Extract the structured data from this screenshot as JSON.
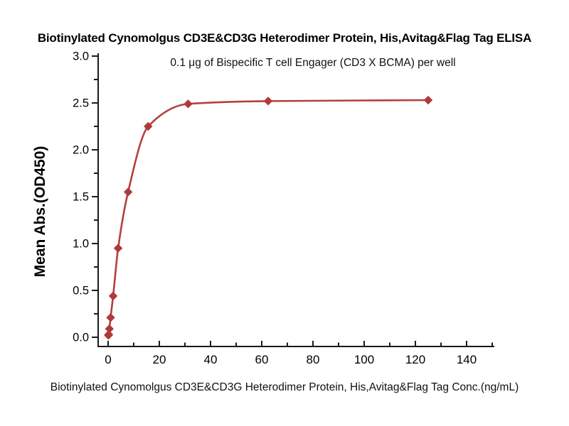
{
  "chart_data": {
    "type": "scatter",
    "title": "Biotinylated Cynomolgus CD3E&CD3G Heterodimer Protein, His,Avitag&Flag Tag ELISA",
    "subtitle": "0.1 μg of Bispecific T cell Engager (CD3 X BCMA) per well",
    "xlabel": "Biotinylated Cynomolgus CD3E&CD3G Heterodimer Protein, His,Avitag&Flag Tag Conc.(ng/mL)",
    "ylabel": "Mean Abs.(OD450)",
    "x": [
      0.12,
      0.24,
      0.49,
      0.98,
      1.95,
      3.91,
      7.81,
      15.63,
      31.25,
      62.5,
      125
    ],
    "y": [
      0.02,
      0.03,
      0.09,
      0.21,
      0.44,
      0.95,
      1.55,
      2.25,
      2.49,
      2.52,
      2.53
    ],
    "curve": "smooth saturation fit through points",
    "marker": "diamond",
    "xlim": [
      0,
      150
    ],
    "ylim": [
      0.0,
      3.0
    ],
    "x_major_ticks": [
      0,
      20,
      40,
      60,
      80,
      100,
      120,
      140
    ],
    "x_tick_labels": [
      "0",
      "20",
      "40",
      "60",
      "80",
      "100",
      "120",
      "140"
    ],
    "x_minor_step": 10,
    "y_major_ticks": [
      0.0,
      0.5,
      1.0,
      1.5,
      2.0,
      2.5,
      3.0
    ],
    "y_tick_labels": [
      "0.0",
      "0.5",
      "1.0",
      "1.5",
      "2.0",
      "2.5",
      "3.0"
    ],
    "y_minor_step": 0.25,
    "grid": "off",
    "legend": "none",
    "colors": {
      "curve": "#b2403f",
      "marker": "#b1383b",
      "axis": "#1a1a1a",
      "text": "#000000",
      "background": "#ffffff"
    }
  }
}
